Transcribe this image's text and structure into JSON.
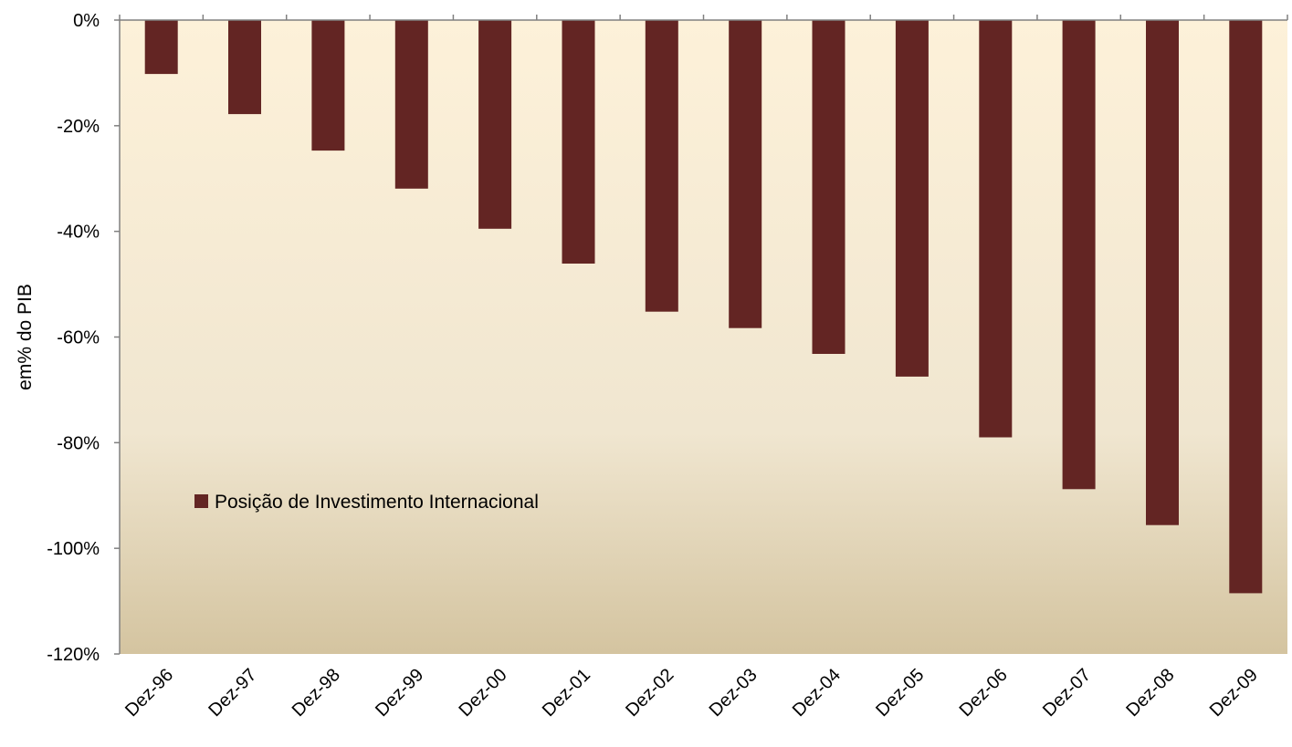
{
  "colors": {
    "bar": "#632523",
    "plot_top": "#fdf1d9",
    "plot_mid": "#f0e6d0",
    "plot_bottom": "#d4c4a0",
    "axis": "#808080"
  },
  "chart_data": {
    "type": "bar",
    "title": "",
    "xlabel": "",
    "ylabel": "em% do PIB",
    "categories": [
      "Dez-96",
      "Dez-97",
      "Dez-98",
      "Dez-99",
      "Dez-00",
      "Dez-01",
      "Dez-02",
      "Dez-03",
      "Dez-04",
      "Dez-05",
      "Dez-06",
      "Dez-07",
      "Dez-08",
      "Dez-09"
    ],
    "series": [
      {
        "name": "Posição de Investimento Internacional",
        "values": [
          -10.2,
          -17.8,
          -24.7,
          -31.9,
          -39.5,
          -46.1,
          -55.2,
          -58.3,
          -63.2,
          -67.5,
          -79.0,
          -88.8,
          -95.6,
          -108.5
        ]
      }
    ],
    "ylim": [
      -120,
      0
    ],
    "yticks": [
      0,
      -20,
      -40,
      -60,
      -80,
      -100,
      -120
    ],
    "ytick_labels": [
      "0%",
      "-20%",
      "-40%",
      "-60%",
      "-80%",
      "-100%",
      "-120%"
    ],
    "grid": false,
    "legend_position": "inside-left"
  }
}
